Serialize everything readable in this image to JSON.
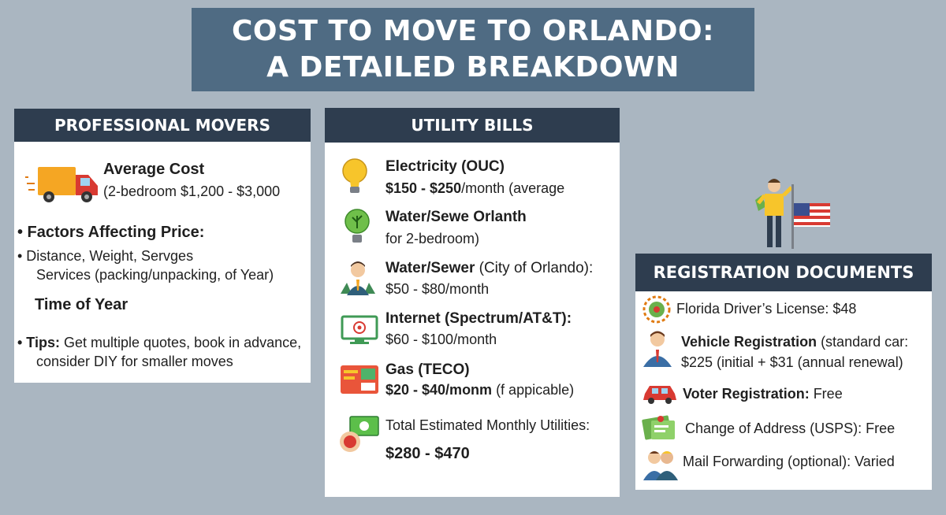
{
  "title": {
    "line1": "COST TO MOVE TO ORLANDO:",
    "line2": "A DETAILED BREAKDOWN"
  },
  "movers": {
    "header": "PROFESSIONAL MOVERS",
    "average_cost_label": "Average Cost",
    "average_cost_value": "(2-bedroom $1,200 - $3,000",
    "factors_label": "• Factors Affecting Price:",
    "factors_line1": "•  Distance, Weight, Servges",
    "factors_line2": "Services (packing/unpacking, of Year)",
    "time_of_year": "Time of Year",
    "tips_label": "• Tips:",
    "tips_line1": " Get multiple quotes, book in advance,",
    "tips_line2": "consider DIY for smaller moves"
  },
  "utilities": {
    "header": "UTILITY BILLS",
    "items": [
      {
        "label": "Electricity (OUC)",
        "value": "$150 - $250",
        "value_suffix": "/month (average",
        "icon": "lightbulb-icon"
      },
      {
        "label": "Water/Sewe Orlanth",
        "value": "for 2-bedroom)",
        "icon": "plant-bulb-icon"
      },
      {
        "label": "Water/Sewer",
        "label_suffix": " (City of Orlando):",
        "value": "$50 - $80/month",
        "icon": "person-icon"
      },
      {
        "label": "Internet (Spectrum/AT&T):",
        "value": "$60 - $100/month",
        "icon": "monitor-icon"
      },
      {
        "label": "Gas (TECO)",
        "value": "$20 - $40/monm",
        "value_suffix": " (f appicable)",
        "icon": "gas-icon"
      }
    ],
    "total_label": "Total Estimated Monthly Utilities:",
    "total_value": "$280 - $470"
  },
  "registration": {
    "header": "REGISTRATION DOCUMENTS",
    "items": [
      {
        "label": "Florida Driver’s License: $48",
        "icon": "gear-badge-icon"
      },
      {
        "label": "Vehicle Registration",
        "label_suffix": " (standard car:",
        "line2": "$225 (initial + $31 (annual renewal)",
        "icon": "person-icon"
      },
      {
        "label": "Voter Registration:",
        "label_suffix": " Free",
        "icon": "car-icon"
      },
      {
        "label": "Change of Address (USPS): Free",
        "icon": "document-icon"
      },
      {
        "label": "Mail Forwarding (optional): Varied",
        "icon": "people-icon"
      }
    ]
  },
  "colors": {
    "background": "#aab6c1",
    "title_bg": "#4f6b83",
    "header_bg": "#2e3d4f",
    "card_bg": "#ffffff"
  }
}
